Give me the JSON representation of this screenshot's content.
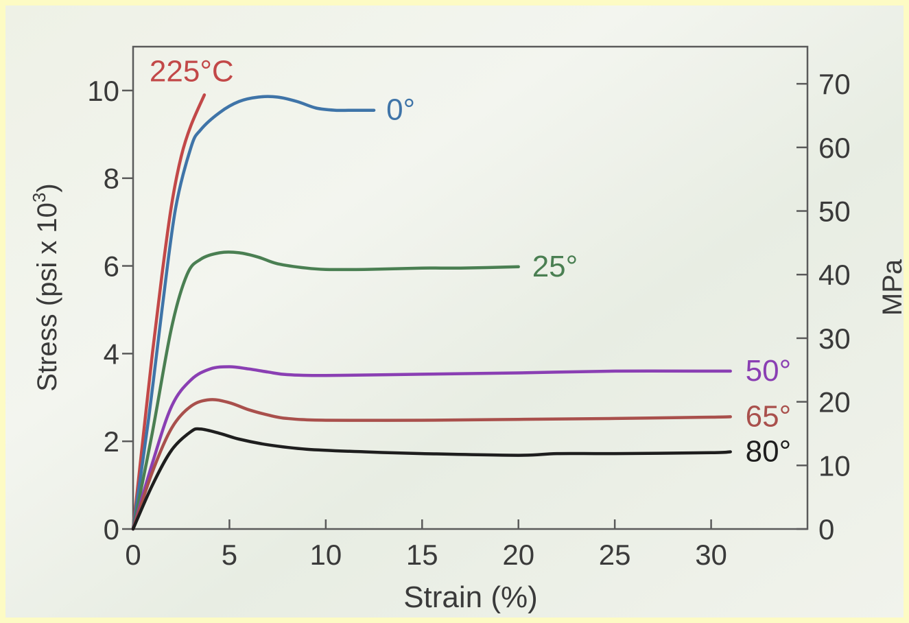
{
  "chart_data": {
    "type": "line",
    "xlabel": "Strain (%)",
    "ylabel": "Stress (psi x 10",
    "ylabel_sup": "3",
    "ylabel_close": ")",
    "y2label": "MPa",
    "xlim": [
      0,
      35
    ],
    "ylim": [
      0,
      11
    ],
    "y2lim": [
      0,
      75.84
    ],
    "x_ticks": [
      0,
      5,
      10,
      15,
      20,
      25,
      30
    ],
    "x_tick_labels": [
      "0",
      "5",
      "10",
      "15",
      "20",
      "25",
      "30"
    ],
    "y_ticks": [
      0,
      2,
      4,
      6,
      8,
      10
    ],
    "y_tick_labels": [
      "0",
      "2",
      "4",
      "6",
      "8",
      "10"
    ],
    "y2_ticks": [
      0,
      10,
      20,
      30,
      40,
      50,
      60,
      70
    ],
    "y2_tick_labels": [
      "0",
      "10",
      "20",
      "30",
      "40",
      "50",
      "60",
      "70"
    ],
    "grid": false,
    "legend": "none",
    "series": [
      {
        "name": "225°C",
        "color": "#c24848",
        "x": [
          0,
          0.5,
          1.0,
          1.5,
          2.0,
          2.5,
          3.0,
          3.7
        ],
        "y": [
          0,
          2.0,
          4.0,
          5.8,
          7.4,
          8.5,
          9.2,
          9.9
        ]
      },
      {
        "name": "0°",
        "color": "#3f74a8",
        "x": [
          0,
          0.8,
          1.5,
          2.2,
          3.0,
          3.5,
          4.5,
          5.5,
          6.5,
          7.5,
          8.5,
          9.5,
          10.5,
          11.5,
          12.5
        ],
        "y": [
          0,
          2.5,
          5.0,
          7.3,
          8.7,
          9.1,
          9.5,
          9.75,
          9.85,
          9.85,
          9.75,
          9.6,
          9.55,
          9.55,
          9.55
        ]
      },
      {
        "name": "25°",
        "color": "#4a7f52",
        "x": [
          0,
          1.0,
          2.0,
          2.8,
          3.5,
          4.5,
          5.5,
          6.5,
          7.5,
          9.0,
          10.0,
          12.0,
          15.0,
          17.0,
          20.0
        ],
        "y": [
          0,
          2.2,
          4.6,
          5.8,
          6.15,
          6.3,
          6.3,
          6.2,
          6.05,
          5.95,
          5.92,
          5.92,
          5.95,
          5.95,
          5.98
        ]
      },
      {
        "name": "50°",
        "color": "#8a3fb3",
        "x": [
          0,
          1.0,
          2.0,
          3.0,
          4.0,
          5.0,
          6.0,
          7.0,
          8.0,
          10.0,
          15.0,
          20.0,
          25.0,
          30.0,
          31.0
        ],
        "y": [
          0,
          1.5,
          2.8,
          3.4,
          3.65,
          3.7,
          3.65,
          3.58,
          3.52,
          3.5,
          3.53,
          3.56,
          3.6,
          3.6,
          3.6
        ]
      },
      {
        "name": "65°",
        "color": "#a9504c",
        "x": [
          0,
          1.0,
          2.0,
          3.0,
          4.0,
          5.0,
          6.0,
          7.0,
          8.0,
          10.0,
          15.0,
          20.0,
          25.0,
          30.0,
          31.0
        ],
        "y": [
          0,
          1.3,
          2.3,
          2.8,
          2.95,
          2.88,
          2.72,
          2.6,
          2.52,
          2.48,
          2.48,
          2.5,
          2.52,
          2.55,
          2.56
        ]
      },
      {
        "name": "80°",
        "color": "#1e1e1e",
        "x": [
          0,
          1.0,
          2.0,
          3.0,
          3.5,
          4.5,
          5.5,
          7.0,
          9.0,
          12.0,
          15.0,
          20.0,
          22.0,
          25.0,
          30.0,
          31.0
        ],
        "y": [
          0,
          1.0,
          1.8,
          2.22,
          2.28,
          2.18,
          2.05,
          1.92,
          1.82,
          1.76,
          1.72,
          1.68,
          1.72,
          1.72,
          1.74,
          1.76
        ]
      }
    ]
  }
}
